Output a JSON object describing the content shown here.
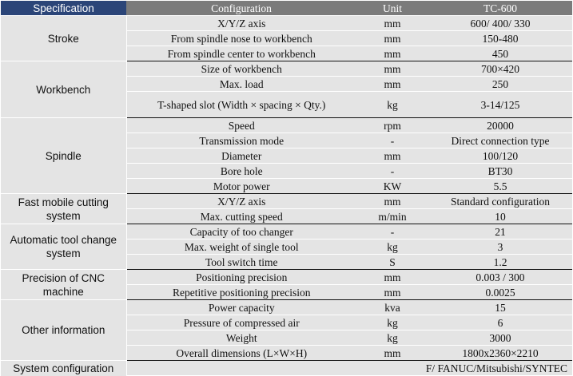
{
  "header": {
    "specification": "Specification",
    "configuration": "Configuration",
    "unit": "Unit",
    "model": "TC-600"
  },
  "groups": [
    {
      "category": "Stroke",
      "rows": [
        {
          "configuration": "X/Y/Z axis",
          "unit": "mm",
          "value": "600/ 400/ 330"
        },
        {
          "configuration": "From spindle nose to workbench",
          "unit": "mm",
          "value": "150-480"
        },
        {
          "configuration": "From spindle center to workbench",
          "unit": "mm",
          "value": "450"
        }
      ]
    },
    {
      "category": "Workbench",
      "rows": [
        {
          "configuration": "Size of workbench",
          "unit": "mm",
          "value": "700×420"
        },
        {
          "configuration": "Max. load",
          "unit": "mm",
          "value": "250"
        },
        {
          "configuration": "T-shaped slot (Width × spacing × Qty.)",
          "unit": "kg",
          "value": "3-14/125"
        }
      ]
    },
    {
      "category": "Spindle",
      "rows": [
        {
          "configuration": "Speed",
          "unit": "rpm",
          "value": "20000"
        },
        {
          "configuration": "Transmission mode",
          "unit": "-",
          "value": "Direct connection type"
        },
        {
          "configuration": "Diameter",
          "unit": "mm",
          "value": "100/120"
        },
        {
          "configuration": "Bore hole",
          "unit": "-",
          "value": "BT30"
        },
        {
          "configuration": "Motor power",
          "unit": "KW",
          "value": "5.5"
        }
      ]
    },
    {
      "category": "Fast mobile cutting system",
      "rows": [
        {
          "configuration": "X/Y/Z axis",
          "unit": "mm",
          "value": "Standard configuration"
        },
        {
          "configuration": "Max. cutting speed",
          "unit": "m/min",
          "value": "10"
        }
      ]
    },
    {
      "category": "Automatic tool change system",
      "rows": [
        {
          "configuration": "Capacity of too changer",
          "unit": "-",
          "value": "21"
        },
        {
          "configuration": "Max. weight of single tool",
          "unit": "kg",
          "value": "3"
        },
        {
          "configuration": "Tool switch time",
          "unit": "S",
          "value": "1.2"
        }
      ]
    },
    {
      "category": "Precision of CNC machine",
      "rows": [
        {
          "configuration": "Positioning precision",
          "unit": "mm",
          "value": "0.003 / 300"
        },
        {
          "configuration": "Repetitive positioning precision",
          "unit": "mm",
          "value": "0.0025"
        }
      ]
    },
    {
      "category": "Other information",
      "rows": [
        {
          "configuration": "Power capacity",
          "unit": "kva",
          "value": "15"
        },
        {
          "configuration": "Pressure of compressed air",
          "unit": "kg",
          "value": "6"
        },
        {
          "configuration": "Weight",
          "unit": "kg",
          "value": "3000"
        },
        {
          "configuration": "Overall dimensions (L×W×H)",
          "unit": "mm",
          "value": "1800x2360×2210"
        }
      ]
    }
  ],
  "system_configuration": {
    "label": "System configuration",
    "value": "F/ FANUC/Mitsubishi/SYNTEC"
  }
}
